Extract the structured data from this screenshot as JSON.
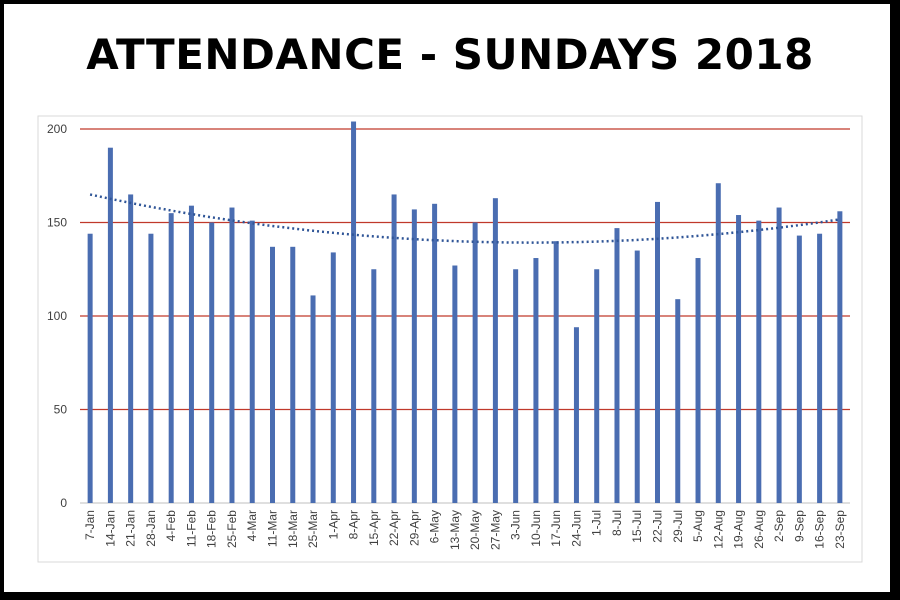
{
  "page": {
    "title": "ATTENDANCE - SUNDAYS 2018"
  },
  "chart_data": {
    "type": "bar",
    "title": "ATTENDANCE - SUNDAYS 2018",
    "xlabel": "",
    "ylabel": "",
    "ylim": [
      0,
      200
    ],
    "yticks": [
      0,
      50,
      100,
      150,
      200
    ],
    "grid": true,
    "bar_color": "#4a6db1",
    "grid_color": "#c0392b",
    "trend_color": "#2f5597",
    "trendline": "polynomial",
    "categories": [
      "7-Jan",
      "14-Jan",
      "21-Jan",
      "28-Jan",
      "4-Feb",
      "11-Feb",
      "18-Feb",
      "25-Feb",
      "4-Mar",
      "11-Mar",
      "18-Mar",
      "25-Mar",
      "1-Apr",
      "8-Apr",
      "15-Apr",
      "22-Apr",
      "29-Apr",
      "6-May",
      "13-May",
      "20-May",
      "27-May",
      "3-Jun",
      "10-Jun",
      "17-Jun",
      "24-Jun",
      "1-Jul",
      "8-Jul",
      "15-Jul",
      "22-Jul",
      "29-Jul",
      "5-Aug",
      "12-Aug",
      "19-Aug",
      "26-Aug",
      "2-Sep",
      "9-Sep",
      "16-Sep",
      "23-Sep"
    ],
    "values": [
      144,
      190,
      165,
      144,
      155,
      159,
      150,
      158,
      151,
      137,
      137,
      111,
      134,
      204,
      125,
      165,
      157,
      160,
      127,
      150,
      163,
      125,
      131,
      140,
      94,
      125,
      147,
      135,
      161,
      109,
      131,
      171,
      154,
      151,
      158,
      143,
      144,
      156
    ]
  }
}
